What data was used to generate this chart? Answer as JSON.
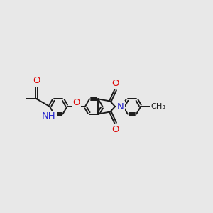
{
  "bg_color": "#e8e8e8",
  "bond_color": "#1a1a1a",
  "bond_width": 1.4,
  "dbo": 0.055,
  "figsize": [
    3.0,
    3.0
  ],
  "dpi": 100,
  "O_color": "#dd0000",
  "N_color": "#2222cc",
  "C_color": "#1a1a1a",
  "font_size": 9.5,
  "xlim": [
    -0.5,
    9.5
  ],
  "ylim": [
    -2.5,
    2.5
  ]
}
